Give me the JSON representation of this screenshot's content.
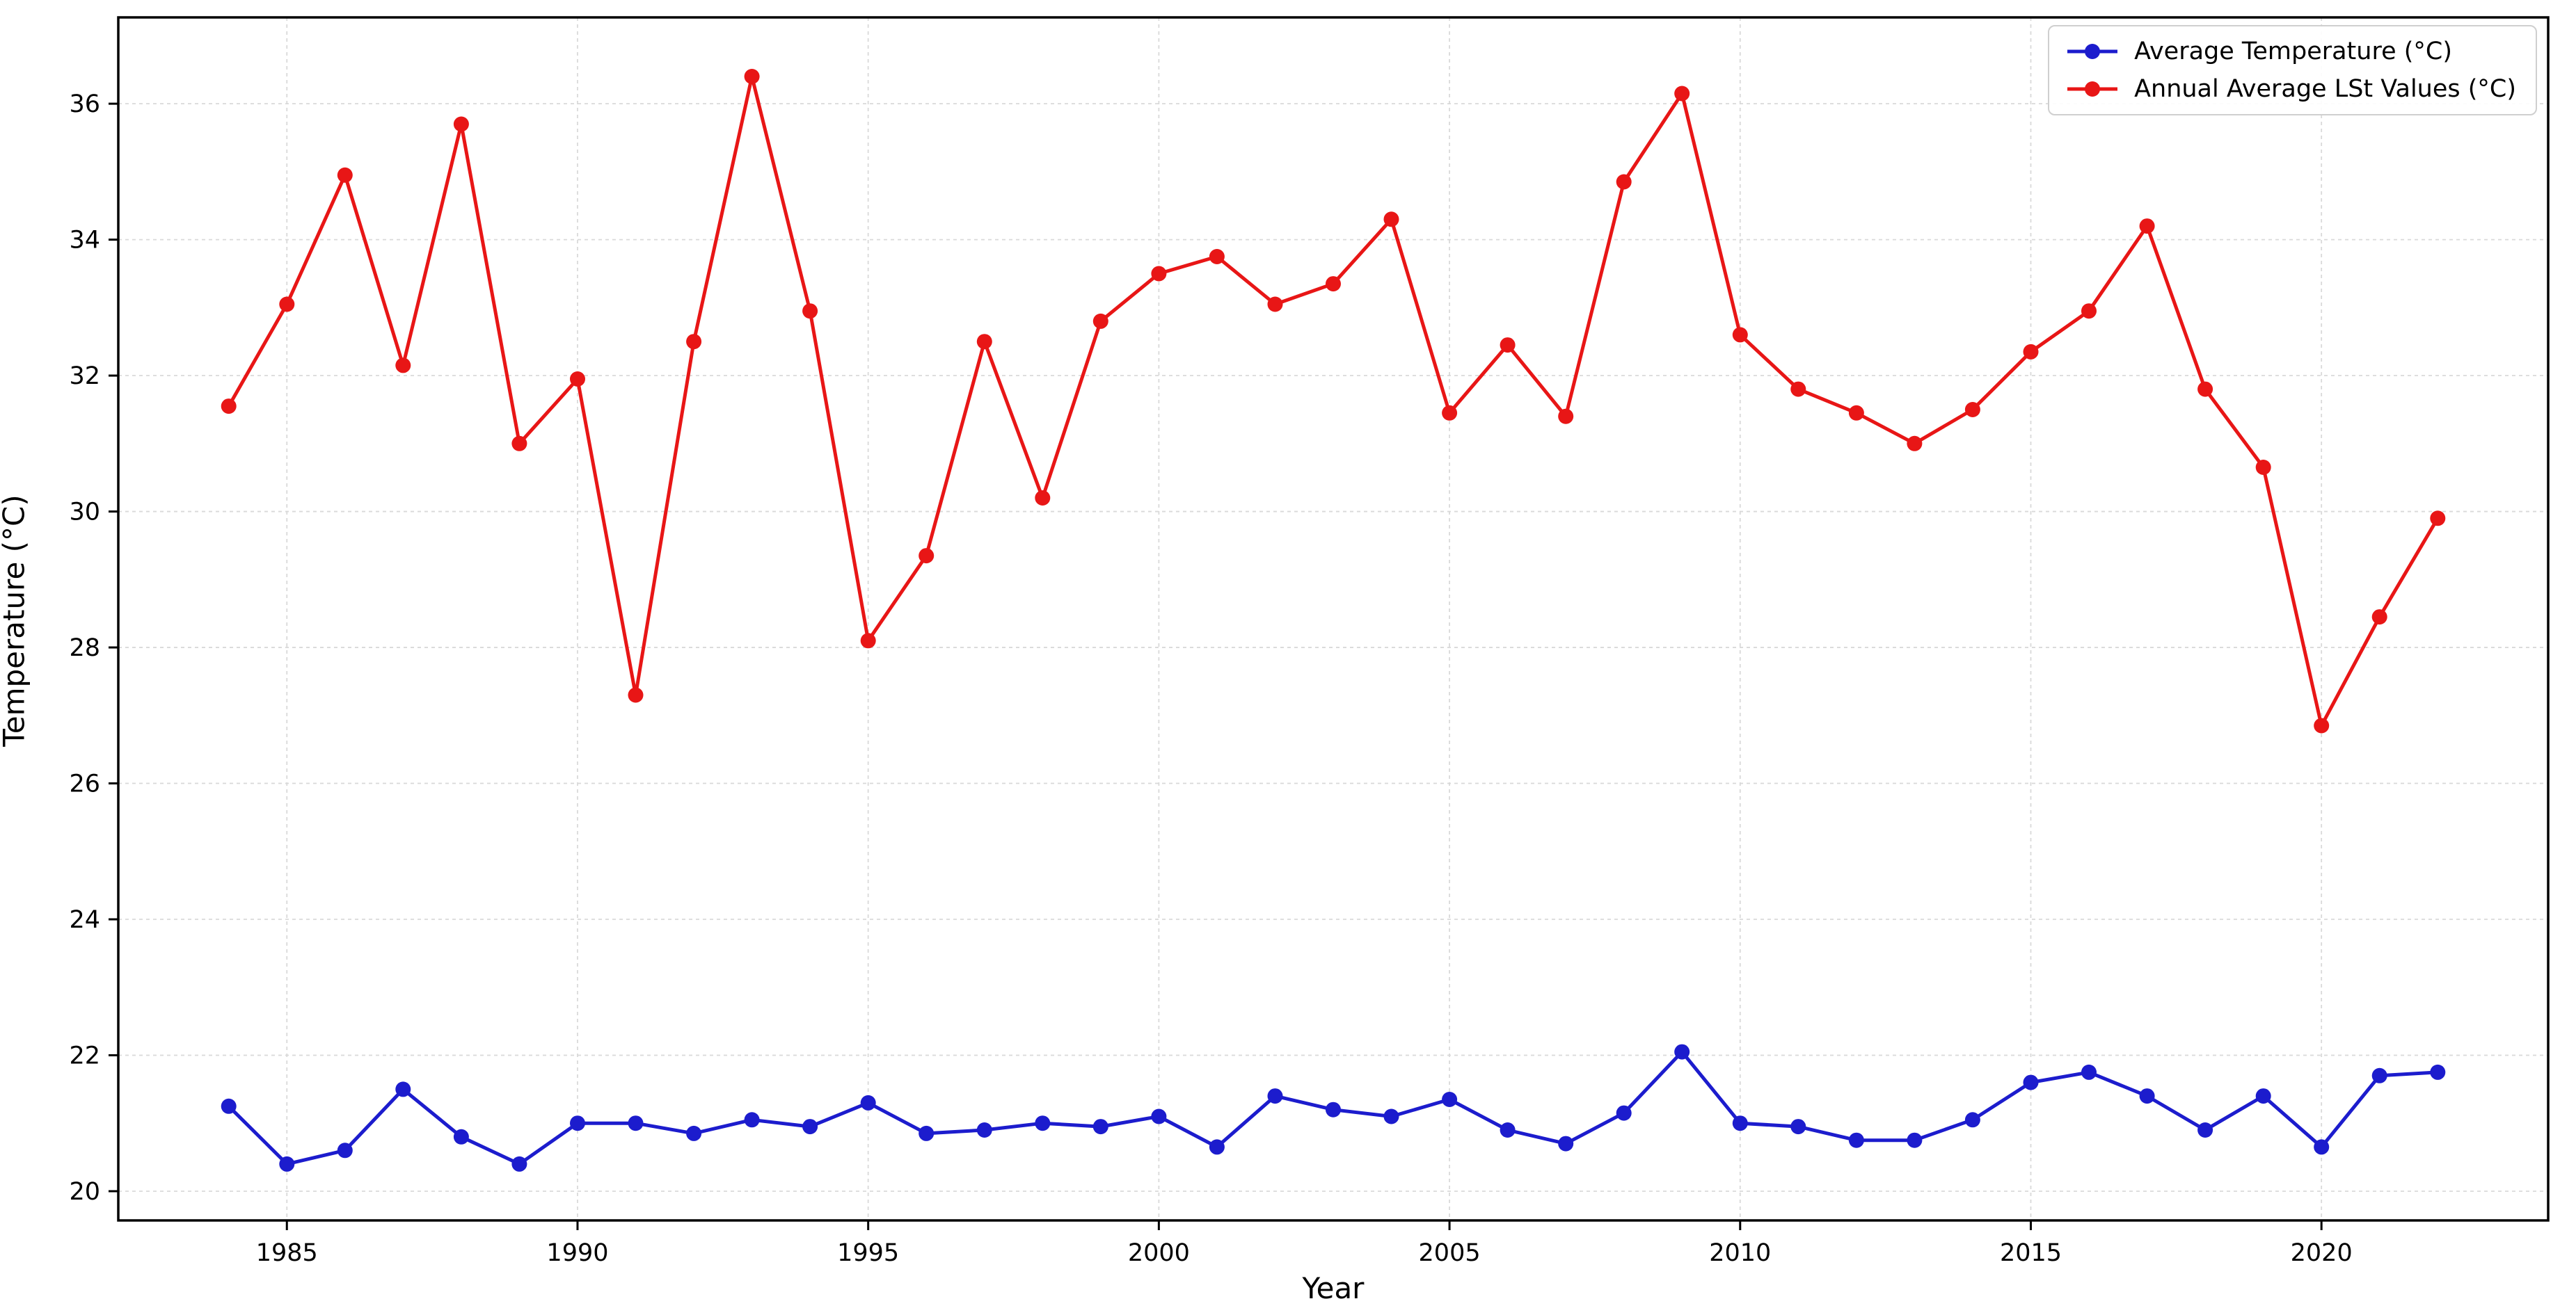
{
  "chart_data": {
    "type": "line",
    "xlabel": "Year",
    "ylabel": "Temperature (°C)",
    "x": [
      1984,
      1985,
      1986,
      1987,
      1988,
      1989,
      1990,
      1991,
      1992,
      1993,
      1994,
      1995,
      1996,
      1997,
      1998,
      1999,
      2000,
      2001,
      2002,
      2003,
      2004,
      2005,
      2006,
      2007,
      2008,
      2009,
      2010,
      2011,
      2012,
      2013,
      2014,
      2015,
      2016,
      2017,
      2018,
      2019,
      2020,
      2021,
      2022
    ],
    "series": [
      {
        "name": "Average Temperature (°C)",
        "color": "#1c1ccd",
        "values": [
          21.25,
          20.4,
          20.6,
          21.5,
          20.8,
          20.4,
          21.0,
          21.0,
          20.85,
          21.05,
          20.95,
          21.3,
          20.85,
          20.9,
          21.0,
          20.95,
          21.1,
          20.65,
          21.4,
          21.2,
          21.1,
          21.35,
          20.9,
          20.7,
          21.15,
          22.05,
          21.0,
          20.95,
          20.75,
          20.75,
          21.05,
          21.6,
          21.75,
          21.4,
          20.9,
          21.4,
          20.65,
          21.7,
          21.75
        ]
      },
      {
        "name": "Annual Average LSt Values (°C)",
        "color": "#e81616",
        "values": [
          31.55,
          33.05,
          34.95,
          32.15,
          35.7,
          31.0,
          31.95,
          27.3,
          32.5,
          36.4,
          32.95,
          28.1,
          29.35,
          32.5,
          30.2,
          32.8,
          33.5,
          33.75,
          33.05,
          33.35,
          34.3,
          31.45,
          32.45,
          31.4,
          34.85,
          36.15,
          32.6,
          31.8,
          31.45,
          31.0,
          31.5,
          32.35,
          32.95,
          34.2,
          31.8,
          30.65,
          26.85,
          28.45,
          29.9
        ]
      }
    ],
    "xticks": [
      1985,
      1990,
      1995,
      2000,
      2005,
      2010,
      2015,
      2020
    ],
    "yticks": [
      20,
      22,
      24,
      26,
      28,
      30,
      32,
      34,
      36
    ],
    "xlim": [
      1982.1,
      2023.9
    ],
    "ylim": [
      19.57,
      37.27
    ],
    "grid": "dashed-light-gray",
    "legend_position": "upper right",
    "colors": {
      "grid": "#d9d9d9",
      "spine": "#000000",
      "background": "#ffffff"
    }
  }
}
